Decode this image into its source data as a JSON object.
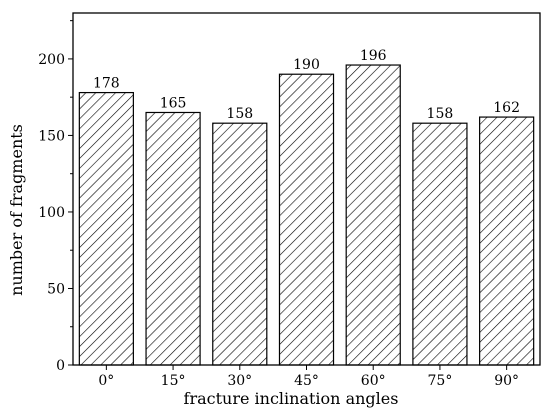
{
  "chart_data": {
    "type": "bar",
    "title": "",
    "xlabel": "fracture inclination angles",
    "ylabel": "number of fragments",
    "categories": [
      "0°",
      "15°",
      "30°",
      "45°",
      "60°",
      "75°",
      "90°"
    ],
    "values": [
      178,
      165,
      158,
      190,
      196,
      158,
      162
    ],
    "data_labels": [
      "178",
      "165",
      "158",
      "190",
      "196",
      "158",
      "162"
    ],
    "ylim": [
      0,
      230
    ],
    "yticks": [
      0,
      50,
      100,
      150,
      200
    ],
    "ytick_labels": [
      "0",
      "50",
      "100",
      "150",
      "200"
    ],
    "bar_fill": "diagonal-hatch",
    "bar_color": "#000000",
    "grid": false,
    "legend": "none"
  }
}
